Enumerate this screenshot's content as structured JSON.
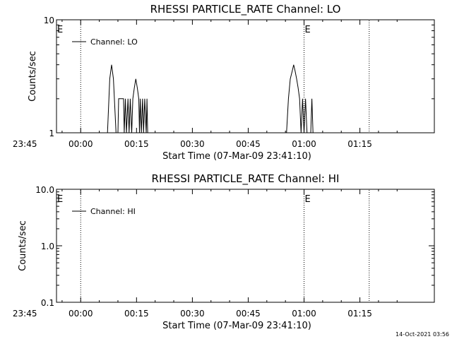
{
  "footer": {
    "timestamp": "14-Oct-2021 03:56"
  },
  "chart_data": [
    {
      "type": "line",
      "title": "RHESSI PARTICLE_RATE Channel: LO",
      "xlabel": "Start Time (07-Mar-09 23:41:10)",
      "ylabel": "Counts/sec",
      "yscale": "log",
      "ylim": [
        1,
        10
      ],
      "yticks": [
        1,
        10
      ],
      "ytick_labels": [
        "1",
        "10"
      ],
      "xlim_minutes": [
        -6.5,
        95
      ],
      "xticks_minutes": [
        -15,
        0,
        15,
        30,
        45,
        60,
        75
      ],
      "xtick_labels": [
        "23:45",
        "00:00",
        "00:15",
        "00:30",
        "00:45",
        "01:00",
        "01:15"
      ],
      "markers": [
        {
          "x": 0,
          "label": ""
        },
        {
          "x": 60,
          "label": "E"
        },
        {
          "x": 77.5,
          "label": ""
        }
      ],
      "edge_label": "E",
      "legend": {
        "entries": [
          "Channel: LO"
        ],
        "position": "top-left"
      },
      "series": [
        {
          "name": "Channel: LO",
          "color": "#000000",
          "x": [
            7.2,
            7.8,
            8.3,
            8.8,
            9.5,
            10.0,
            10.2,
            11.5,
            11.7,
            12.0,
            12.3,
            12.7,
            13.0,
            13.3,
            13.7,
            14.0,
            14.4,
            14.8,
            15.2,
            15.6,
            15.8,
            16.0,
            16.3,
            16.6,
            16.9,
            17.2,
            17.6,
            17.8,
            18.0,
            55.3,
            55.8,
            56.3,
            56.8,
            57.2,
            57.6,
            58.0,
            58.4,
            58.8,
            59.2,
            59.6,
            60.0,
            60.4,
            60.8,
            61.3,
            61.8,
            62.1,
            62.4,
            62.8
          ],
          "y": [
            1,
            3,
            4,
            3,
            1,
            1,
            2,
            2,
            1,
            2,
            1,
            2,
            1,
            2,
            1,
            2,
            2.5,
            3,
            2.5,
            2,
            1,
            2,
            1,
            2,
            1,
            2,
            1,
            2,
            1,
            1,
            2,
            3,
            3.5,
            4,
            3.5,
            3,
            2.5,
            2,
            1,
            2,
            1,
            2,
            1,
            1,
            1,
            2,
            1,
            1
          ]
        }
      ]
    },
    {
      "type": "line",
      "title": "RHESSI PARTICLE_RATE Channel: HI",
      "xlabel": "Start Time (07-Mar-09 23:41:10)",
      "ylabel": "Counts/sec",
      "yscale": "log",
      "ylim": [
        0.1,
        10
      ],
      "yticks": [
        0.1,
        1,
        10
      ],
      "ytick_labels": [
        "0.1",
        "1.0",
        "10.0"
      ],
      "xlim_minutes": [
        -6.5,
        95
      ],
      "xticks_minutes": [
        -15,
        0,
        15,
        30,
        45,
        60,
        75
      ],
      "xtick_labels": [
        "23:45",
        "00:00",
        "00:15",
        "00:30",
        "00:45",
        "01:00",
        "01:15"
      ],
      "markers": [
        {
          "x": 0,
          "label": ""
        },
        {
          "x": 60,
          "label": "E"
        },
        {
          "x": 77.5,
          "label": ""
        }
      ],
      "edge_label": "E",
      "legend": {
        "entries": [
          "Channel: HI"
        ],
        "position": "top-left"
      },
      "series": [
        {
          "name": "Channel: HI",
          "color": "#000000",
          "x": [],
          "y": []
        }
      ]
    }
  ]
}
